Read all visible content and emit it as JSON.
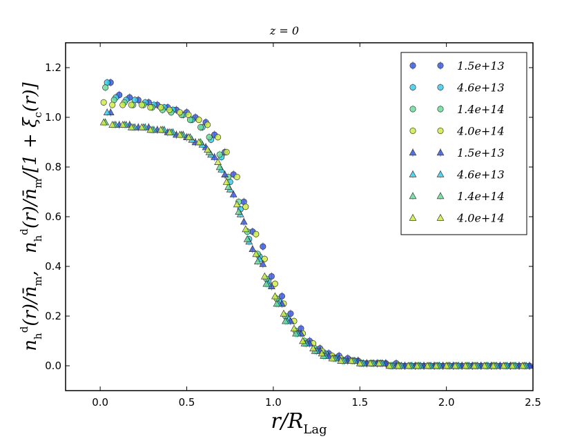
{
  "chart_data": {
    "type": "scatter",
    "title": "z = 0",
    "xlabel": "r/R_Lag",
    "ylabel_left": "n_h^d(r)/n̄_m,",
    "ylabel_right": "n_h^d(r)/n̄_m/[1+ξ_c(r)]",
    "xlim": [
      -0.2,
      2.5
    ],
    "ylim": [
      -0.1,
      1.3
    ],
    "xticks": [
      0.0,
      0.5,
      1.0,
      1.5,
      2.0,
      2.5
    ],
    "xtick_labels": [
      "0.0",
      "0.5",
      "1.0",
      "1.5",
      "2.0",
      "2.5"
    ],
    "yticks": [
      0.0,
      0.2,
      0.4,
      0.6,
      0.8,
      1.0,
      1.2
    ],
    "ytick_labels": [
      "0.0",
      "0.2",
      "0.4",
      "0.6",
      "0.8",
      "1.0",
      "1.2"
    ],
    "legend_position": "top-right",
    "series": [
      {
        "name": "1.5e+13",
        "marker": "circle",
        "color": "#3355dd",
        "x": [
          0.06,
          0.11,
          0.17,
          0.22,
          0.28,
          0.33,
          0.39,
          0.44,
          0.5,
          0.55,
          0.61,
          0.66,
          0.72,
          0.77,
          0.83,
          0.88,
          0.94,
          0.99,
          1.05,
          1.1,
          1.16,
          1.21,
          1.27,
          1.32,
          1.38,
          1.43,
          1.49,
          1.54,
          1.6,
          1.65,
          1.71,
          1.76,
          1.82,
          1.87,
          1.93,
          1.98,
          2.04,
          2.09,
          2.15,
          2.2,
          2.26,
          2.31,
          2.37,
          2.42,
          2.48
        ],
        "y": [
          1.14,
          1.09,
          1.08,
          1.07,
          1.06,
          1.05,
          1.04,
          1.03,
          1.02,
          1.0,
          0.98,
          0.93,
          0.86,
          0.77,
          0.66,
          0.54,
          0.48,
          0.36,
          0.28,
          0.21,
          0.15,
          0.1,
          0.07,
          0.05,
          0.04,
          0.03,
          0.02,
          0.01,
          0.01,
          0.01,
          0.01,
          0.0,
          0.0,
          0.0,
          0.0,
          0.0,
          0.0,
          0.0,
          0.0,
          0.0,
          0.0,
          0.0,
          0.0,
          0.0,
          0.0
        ]
      },
      {
        "name": "4.6e+13",
        "marker": "circle",
        "color": "#33ccee",
        "x": [
          0.04,
          0.09,
          0.15,
          0.2,
          0.26,
          0.31,
          0.37,
          0.42,
          0.48,
          0.53,
          0.59,
          0.64,
          0.7,
          0.75,
          0.81,
          0.86,
          0.92,
          0.97,
          1.03,
          1.08,
          1.14,
          1.19,
          1.25,
          1.3,
          1.36,
          1.41,
          1.47,
          1.52,
          1.58,
          1.63,
          1.69,
          1.74,
          1.8,
          1.85,
          1.91,
          1.96,
          2.02,
          2.07,
          2.13,
          2.18,
          2.24,
          2.29,
          2.35,
          2.4,
          2.46
        ],
        "y": [
          1.14,
          1.08,
          1.07,
          1.07,
          1.06,
          1.05,
          1.04,
          1.03,
          1.01,
          0.99,
          0.96,
          0.91,
          0.84,
          0.74,
          0.63,
          0.51,
          0.44,
          0.34,
          0.26,
          0.19,
          0.13,
          0.09,
          0.06,
          0.05,
          0.03,
          0.02,
          0.02,
          0.01,
          0.01,
          0.01,
          0.0,
          0.0,
          0.0,
          0.0,
          0.0,
          0.0,
          0.0,
          0.0,
          0.0,
          0.0,
          0.0,
          0.0,
          0.0,
          0.0,
          0.0
        ]
      },
      {
        "name": "1.4e+14",
        "marker": "circle",
        "color": "#66dd99",
        "x": [
          0.03,
          0.08,
          0.14,
          0.19,
          0.25,
          0.3,
          0.36,
          0.41,
          0.47,
          0.52,
          0.58,
          0.63,
          0.69,
          0.74,
          0.8,
          0.85,
          0.91,
          0.96,
          1.02,
          1.07,
          1.13,
          1.18,
          1.24,
          1.29,
          1.35,
          1.4,
          1.46,
          1.51,
          1.57,
          1.62,
          1.68,
          1.73,
          1.79,
          1.84,
          1.9,
          1.95,
          2.01,
          2.06,
          2.12,
          2.17,
          2.23,
          2.28,
          2.34,
          2.39,
          2.45
        ],
        "y": [
          1.12,
          1.07,
          1.06,
          1.05,
          1.05,
          1.04,
          1.03,
          1.02,
          1.01,
          0.99,
          0.96,
          0.92,
          0.85,
          0.76,
          0.66,
          0.54,
          0.45,
          0.35,
          0.27,
          0.2,
          0.14,
          0.1,
          0.07,
          0.05,
          0.03,
          0.02,
          0.02,
          0.01,
          0.01,
          0.01,
          0.0,
          0.0,
          0.0,
          0.0,
          0.0,
          0.0,
          0.0,
          0.0,
          0.0,
          0.0,
          0.0,
          0.0,
          0.0,
          0.0,
          0.0
        ]
      },
      {
        "name": "4.0e+14",
        "marker": "circle",
        "color": "#ccee44",
        "x": [
          0.02,
          0.07,
          0.13,
          0.18,
          0.24,
          0.29,
          0.35,
          0.4,
          0.46,
          0.51,
          0.57,
          0.62,
          0.68,
          0.73,
          0.79,
          0.84,
          0.9,
          0.95,
          1.01,
          1.06,
          1.12,
          1.17,
          1.23,
          1.28,
          1.34,
          1.39,
          1.45,
          1.5,
          1.56,
          1.61,
          1.67,
          1.72,
          1.78,
          1.83,
          1.89,
          1.94,
          2.0,
          2.05,
          2.11,
          2.16,
          2.22,
          2.27,
          2.33,
          2.38,
          2.44
        ],
        "y": [
          1.06,
          1.05,
          1.05,
          1.05,
          1.05,
          1.04,
          1.04,
          1.03,
          1.02,
          1.01,
          0.99,
          0.97,
          0.92,
          0.86,
          0.76,
          0.64,
          0.53,
          0.43,
          0.33,
          0.25,
          0.18,
          0.13,
          0.09,
          0.06,
          0.04,
          0.03,
          0.02,
          0.01,
          0.01,
          0.01,
          0.0,
          0.0,
          0.0,
          0.0,
          0.0,
          0.0,
          0.0,
          0.0,
          0.0,
          0.0,
          0.0,
          0.0,
          0.0,
          0.0,
          0.0
        ]
      },
      {
        "name": "1.5e+13",
        "marker": "triangle",
        "color": "#3355dd",
        "x": [
          0.06,
          0.11,
          0.17,
          0.22,
          0.28,
          0.33,
          0.39,
          0.44,
          0.5,
          0.55,
          0.61,
          0.66,
          0.72,
          0.77,
          0.83,
          0.88,
          0.94,
          0.99,
          1.05,
          1.1,
          1.16,
          1.21,
          1.27,
          1.32,
          1.38,
          1.43,
          1.49,
          1.54,
          1.6,
          1.65,
          1.71,
          1.76,
          1.82,
          1.87,
          1.93,
          1.98,
          2.04,
          2.09,
          2.15,
          2.2,
          2.26,
          2.31,
          2.37,
          2.42,
          2.48
        ],
        "y": [
          1.02,
          0.97,
          0.97,
          0.96,
          0.96,
          0.95,
          0.94,
          0.93,
          0.92,
          0.9,
          0.88,
          0.84,
          0.77,
          0.69,
          0.58,
          0.47,
          0.41,
          0.32,
          0.25,
          0.18,
          0.13,
          0.09,
          0.06,
          0.04,
          0.03,
          0.02,
          0.02,
          0.01,
          0.01,
          0.01,
          0.0,
          0.0,
          0.0,
          0.0,
          0.0,
          0.0,
          0.0,
          0.0,
          0.0,
          0.0,
          0.0,
          0.0,
          0.0,
          0.0,
          0.0
        ]
      },
      {
        "name": "4.6e+13",
        "marker": "triangle",
        "color": "#33ccee",
        "x": [
          0.04,
          0.09,
          0.15,
          0.2,
          0.26,
          0.31,
          0.37,
          0.42,
          0.48,
          0.53,
          0.59,
          0.64,
          0.7,
          0.75,
          0.81,
          0.86,
          0.92,
          0.97,
          1.03,
          1.08,
          1.14,
          1.19,
          1.25,
          1.3,
          1.36,
          1.41,
          1.47,
          1.52,
          1.58,
          1.63,
          1.69,
          1.74,
          1.8,
          1.85,
          1.91,
          1.96,
          2.02,
          2.07,
          2.13,
          2.18,
          2.24,
          2.29,
          2.35,
          2.4,
          2.46
        ],
        "y": [
          1.02,
          0.97,
          0.97,
          0.96,
          0.96,
          0.95,
          0.95,
          0.94,
          0.93,
          0.91,
          0.89,
          0.85,
          0.79,
          0.71,
          0.61,
          0.5,
          0.43,
          0.33,
          0.25,
          0.18,
          0.13,
          0.09,
          0.06,
          0.04,
          0.03,
          0.02,
          0.02,
          0.01,
          0.01,
          0.01,
          0.0,
          0.0,
          0.0,
          0.0,
          0.0,
          0.0,
          0.0,
          0.0,
          0.0,
          0.0,
          0.0,
          0.0,
          0.0,
          0.0,
          0.0
        ]
      },
      {
        "name": "1.4e+14",
        "marker": "triangle",
        "color": "#66dd99",
        "x": [
          0.03,
          0.08,
          0.14,
          0.19,
          0.25,
          0.3,
          0.36,
          0.41,
          0.47,
          0.52,
          0.58,
          0.63,
          0.69,
          0.74,
          0.8,
          0.85,
          0.91,
          0.96,
          1.02,
          1.07,
          1.13,
          1.18,
          1.24,
          1.29,
          1.35,
          1.4,
          1.46,
          1.51,
          1.57,
          1.62,
          1.68,
          1.73,
          1.79,
          1.84,
          1.9,
          1.95,
          2.01,
          2.06,
          2.12,
          2.17,
          2.23,
          2.28,
          2.34,
          2.39,
          2.45
        ],
        "y": [
          0.98,
          0.97,
          0.97,
          0.96,
          0.96,
          0.95,
          0.95,
          0.94,
          0.93,
          0.92,
          0.9,
          0.86,
          0.8,
          0.72,
          0.62,
          0.51,
          0.42,
          0.33,
          0.25,
          0.18,
          0.13,
          0.09,
          0.06,
          0.04,
          0.03,
          0.02,
          0.02,
          0.01,
          0.01,
          0.01,
          0.0,
          0.0,
          0.0,
          0.0,
          0.0,
          0.0,
          0.0,
          0.0,
          0.0,
          0.0,
          0.0,
          0.0,
          0.0,
          0.0,
          0.0
        ]
      },
      {
        "name": "4.0e+14",
        "marker": "triangle",
        "color": "#ccee44",
        "x": [
          0.02,
          0.07,
          0.13,
          0.18,
          0.24,
          0.29,
          0.35,
          0.4,
          0.46,
          0.51,
          0.57,
          0.62,
          0.68,
          0.73,
          0.79,
          0.84,
          0.9,
          0.95,
          1.01,
          1.06,
          1.12,
          1.17,
          1.23,
          1.28,
          1.34,
          1.39,
          1.45,
          1.5,
          1.56,
          1.61,
          1.67,
          1.72,
          1.78,
          1.83,
          1.89,
          1.94,
          2.0,
          2.05,
          2.11,
          2.16,
          2.22,
          2.27,
          2.33,
          2.38,
          2.44
        ],
        "y": [
          0.98,
          0.97,
          0.97,
          0.96,
          0.96,
          0.95,
          0.95,
          0.94,
          0.93,
          0.92,
          0.9,
          0.87,
          0.82,
          0.74,
          0.65,
          0.55,
          0.45,
          0.36,
          0.28,
          0.21,
          0.15,
          0.1,
          0.07,
          0.05,
          0.03,
          0.02,
          0.02,
          0.01,
          0.01,
          0.01,
          0.0,
          0.0,
          0.0,
          0.0,
          0.0,
          0.0,
          0.0,
          0.0,
          0.0,
          0.0,
          0.0,
          0.0,
          0.0,
          0.0,
          0.0
        ]
      }
    ]
  }
}
